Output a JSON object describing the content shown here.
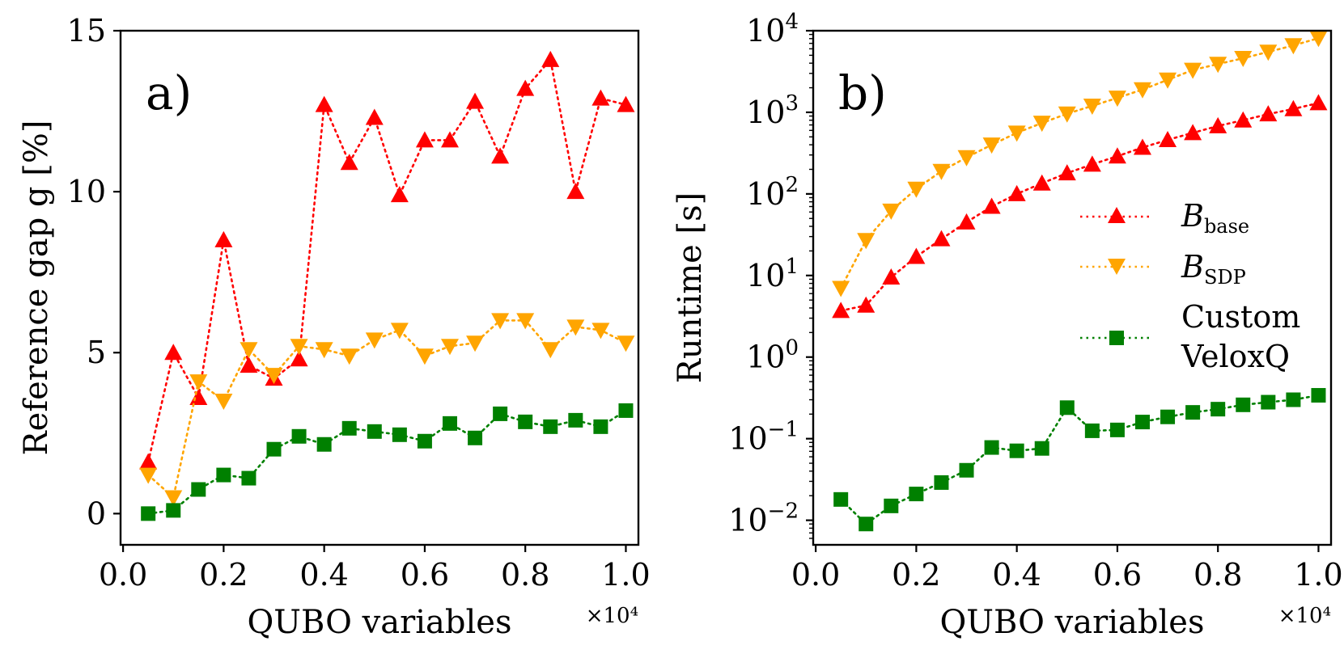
{
  "figure": {
    "panels_count": 2
  },
  "chart_data": [
    {
      "type": "line",
      "panel_label": "a)",
      "xlabel": "QUBO variables",
      "ylabel": "Reference gap g [%]",
      "x_multiplier": "×10⁴",
      "xlim": [
        -0.005,
        1.025
      ],
      "ylim": [
        -0.97,
        15
      ],
      "yscale": "linear",
      "x_ticks": [
        0.0,
        0.2,
        0.4,
        0.6,
        0.8,
        1.0
      ],
      "x_tick_labels": [
        "0.0",
        "0.2",
        "0.4",
        "0.6",
        "0.8",
        "1.0"
      ],
      "y_ticks": [
        0,
        5,
        10,
        15
      ],
      "y_tick_labels": [
        "0",
        "5",
        "10",
        "15"
      ],
      "x": [
        0.05,
        0.1,
        0.15,
        0.2,
        0.25,
        0.3,
        0.35,
        0.4,
        0.45,
        0.5,
        0.55,
        0.6,
        0.65,
        0.7,
        0.75,
        0.8,
        0.85,
        0.9,
        0.95,
        1.0
      ],
      "series": [
        {
          "name": "B_base",
          "color": "#ff0000",
          "marker": "triangle-up",
          "values": [
            1.6,
            5.0,
            3.6,
            8.5,
            4.6,
            4.2,
            4.8,
            12.7,
            10.9,
            12.3,
            9.9,
            11.6,
            11.6,
            12.8,
            11.1,
            13.2,
            14.1,
            10.0,
            12.9,
            12.7
          ]
        },
        {
          "name": "B_SDP",
          "color": "#ffa500",
          "marker": "triangle-down",
          "values": [
            1.2,
            0.5,
            4.1,
            3.5,
            5.1,
            4.3,
            5.2,
            5.1,
            4.9,
            5.4,
            5.7,
            4.9,
            5.2,
            5.3,
            6.0,
            6.0,
            5.1,
            5.8,
            5.7,
            5.3
          ]
        },
        {
          "name": "Custom VeloxQ",
          "color": "#008000",
          "marker": "square",
          "values": [
            0.0,
            0.1,
            0.75,
            1.2,
            1.1,
            2.0,
            2.4,
            2.15,
            2.65,
            2.55,
            2.45,
            2.25,
            2.8,
            2.35,
            3.1,
            2.85,
            2.7,
            2.9,
            2.7,
            3.2
          ]
        }
      ]
    },
    {
      "type": "line",
      "panel_label": "b)",
      "xlabel": "QUBO variables",
      "ylabel": "Runtime [s]",
      "x_multiplier": "×10⁴",
      "xlim": [
        -0.005,
        1.025
      ],
      "ylim": [
        0.005,
        10000
      ],
      "yscale": "log",
      "x_ticks": [
        0.0,
        0.2,
        0.4,
        0.6,
        0.8,
        1.0
      ],
      "x_tick_labels": [
        "0.0",
        "0.2",
        "0.4",
        "0.6",
        "0.8",
        "1.0"
      ],
      "y_ticks": [
        0.01,
        0.1,
        1,
        10,
        100,
        1000,
        10000
      ],
      "y_tick_bases": [
        "10",
        "10",
        "10",
        "10",
        "10",
        "10",
        "10"
      ],
      "y_tick_exponents": [
        "−2",
        "−1",
        "0",
        "1",
        "2",
        "3",
        "4"
      ],
      "x": [
        0.05,
        0.1,
        0.15,
        0.2,
        0.25,
        0.3,
        0.35,
        0.4,
        0.45,
        0.5,
        0.55,
        0.6,
        0.65,
        0.7,
        0.75,
        0.8,
        0.85,
        0.9,
        0.95,
        1.0
      ],
      "series": [
        {
          "name": "B_base",
          "color": "#ff0000",
          "marker": "triangle-up",
          "values": [
            3.7,
            4.3,
            9.5,
            17,
            28,
            45,
            70,
            100,
            135,
            180,
            230,
            290,
            370,
            460,
            560,
            680,
            800,
            950,
            1100,
            1300
          ]
        },
        {
          "name": "B_SDP",
          "color": "#ffa500",
          "marker": "triangle-down",
          "values": [
            7,
            27,
            62,
            115,
            190,
            280,
            400,
            560,
            740,
            960,
            1200,
            1500,
            1900,
            2500,
            3300,
            3900,
            4600,
            5500,
            6600,
            8100
          ]
        },
        {
          "name": "Custom VeloxQ",
          "color": "#008000",
          "marker": "square",
          "values": [
            0.018,
            0.009,
            0.015,
            0.021,
            0.029,
            0.041,
            0.078,
            0.071,
            0.076,
            0.24,
            0.125,
            0.128,
            0.16,
            0.185,
            0.21,
            0.23,
            0.26,
            0.28,
            0.3,
            0.34
          ]
        }
      ],
      "legend": {
        "placement": "center-right",
        "entries": [
          {
            "label_main": "B",
            "label_sub": "base",
            "color": "#ff0000",
            "marker": "triangle-up"
          },
          {
            "label_main": "B",
            "label_sub": "SDP",
            "color": "#ffa500",
            "marker": "triangle-down"
          },
          {
            "label_line1": "Custom",
            "label_line2": "VeloxQ",
            "color": "#008000",
            "marker": "square"
          }
        ]
      }
    }
  ]
}
